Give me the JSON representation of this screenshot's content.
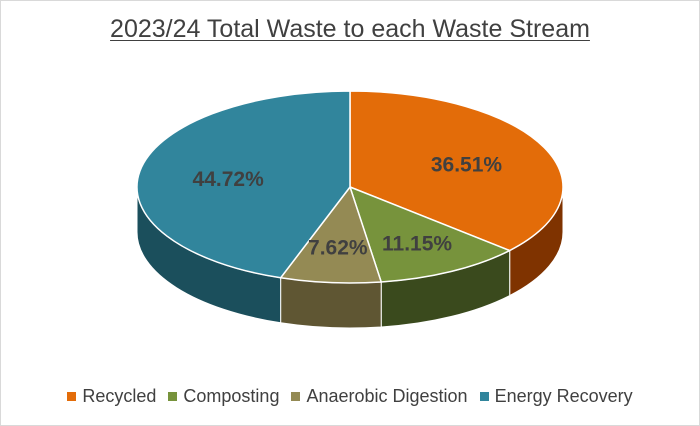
{
  "chart_data": {
    "type": "pie",
    "title": "2023/24 Total Waste to each Waste Stream",
    "three_d": true,
    "legend_position": "bottom",
    "categories": [
      "Recycled",
      "Composting",
      "Anaerobic Digestion",
      "Energy Recovery"
    ],
    "values": [
      36.51,
      11.15,
      7.62,
      44.72
    ],
    "data_labels": [
      "36.51%",
      "11.15%",
      "7.62%",
      "44.72%"
    ],
    "colors": [
      "#e36c09",
      "#77933c",
      "#948a54",
      "#31859c"
    ],
    "side_colors": [
      "#7f3300",
      "#3a4a1d",
      "#5f5633",
      "#1b4f5c"
    ]
  }
}
